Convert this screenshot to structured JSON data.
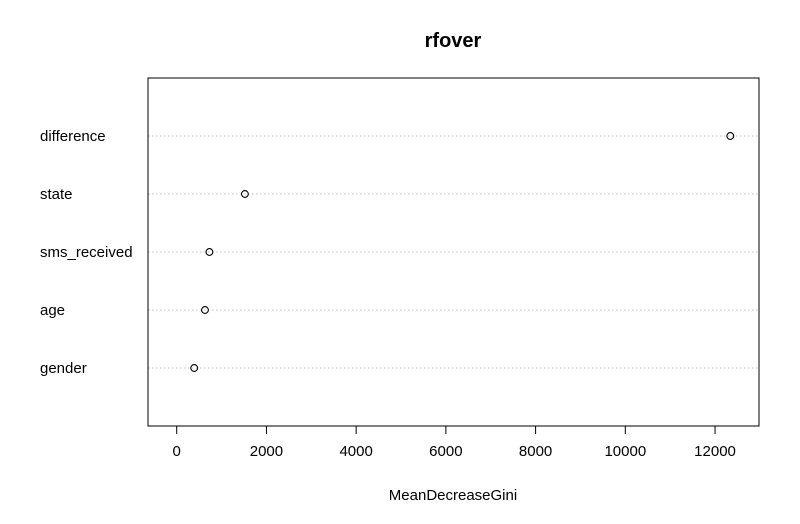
{
  "chart_data": {
    "type": "scatter",
    "title": "rfover",
    "xlabel": "MeanDecreaseGini",
    "ylabel": "",
    "categories": [
      "difference",
      "state",
      "sms_received",
      "age",
      "gender"
    ],
    "values": [
      12340,
      1520,
      730,
      630,
      390
    ],
    "xlim": [
      -640,
      12980
    ],
    "xticks": [
      0,
      2000,
      4000,
      6000,
      8000,
      10000,
      12000
    ],
    "xtick_labels": [
      "0",
      "2000",
      "4000",
      "6000",
      "8000",
      "10000",
      "12000"
    ],
    "grid": "horizontal-dotted",
    "legend": "none",
    "colors": {
      "points": "#000000",
      "gridlines": "#bebebe",
      "frame": "#000000"
    }
  }
}
